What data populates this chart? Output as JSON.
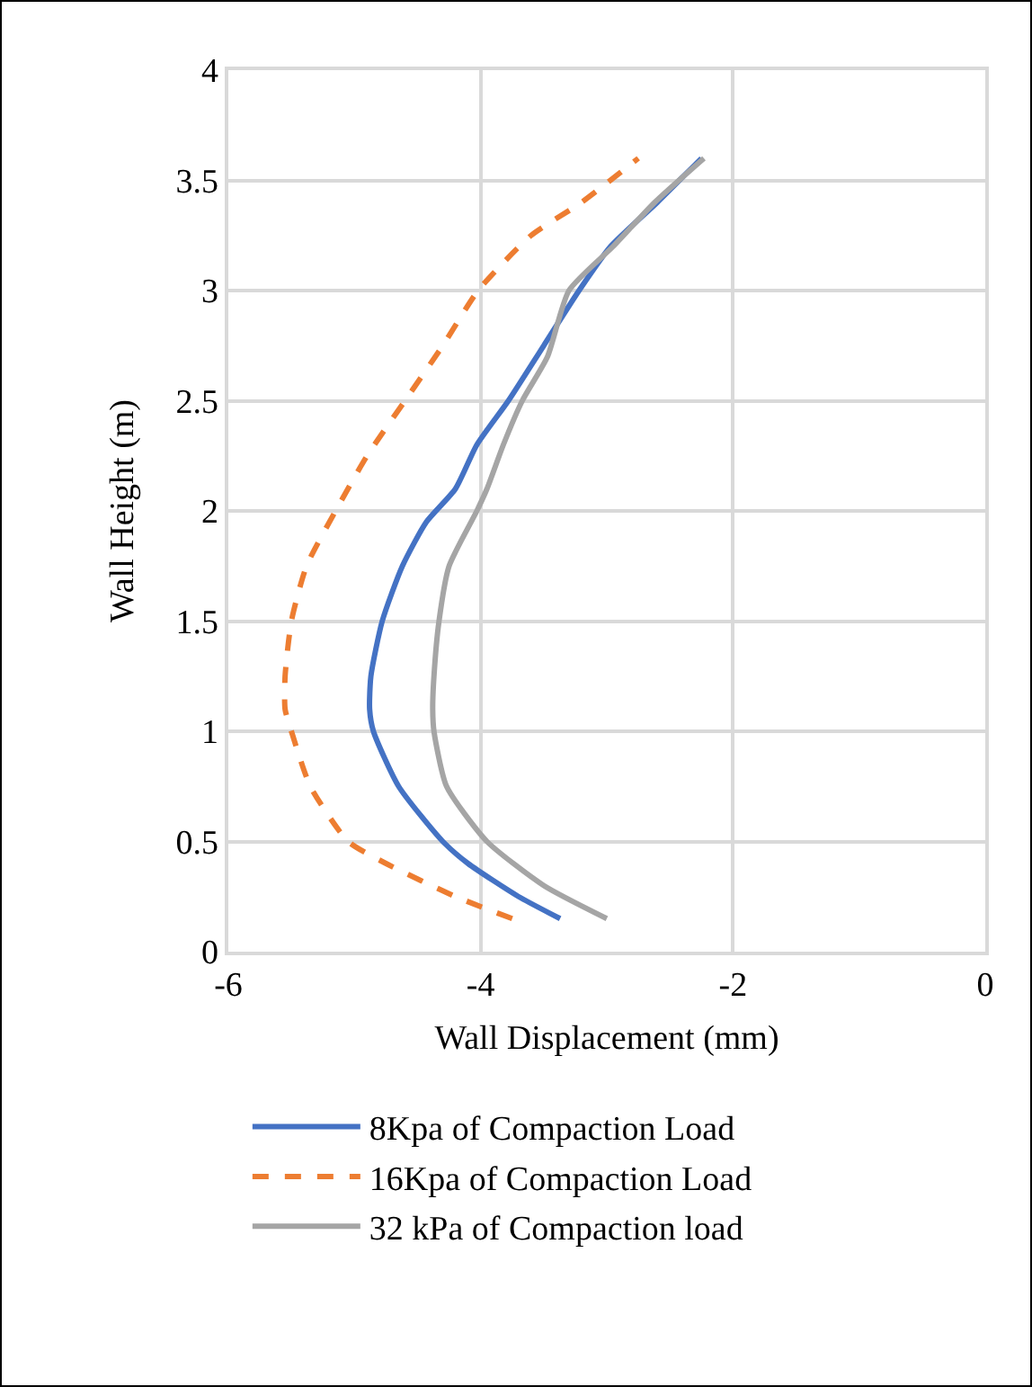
{
  "chart_data": {
    "type": "line",
    "xlabel": "Wall Displacement (mm)",
    "ylabel": "Wall Height (m)",
    "xlim": [
      -6,
      0
    ],
    "xticks": [
      -6,
      -4,
      -2,
      0
    ],
    "ylim": [
      0,
      4
    ],
    "yticks": [
      0,
      0.5,
      1,
      1.5,
      2,
      2.5,
      3,
      3.5,
      4
    ],
    "grid": true,
    "legend": "bottom",
    "marker": "none",
    "series": [
      {
        "name": "8Kpa of Compaction Load",
        "color": "#4472c4",
        "line_style": "solid",
        "x": [
          -3.37,
          -3.7,
          -4.1,
          -4.3,
          -4.65,
          -4.85,
          -4.88,
          -4.87,
          -4.78,
          -4.62,
          -4.43,
          -4.2,
          -4.03,
          -3.78,
          -3.5,
          -3.22,
          -2.97,
          -2.6,
          -2.25
        ],
        "values": [
          0.15,
          0.25,
          0.4,
          0.5,
          0.75,
          1,
          1.1,
          1.25,
          1.5,
          1.75,
          1.95,
          2.1,
          2.3,
          2.5,
          2.75,
          3,
          3.2,
          3.4,
          3.6
        ]
      },
      {
        "name": "16Kpa of Compaction Load",
        "color": "#ed7d31",
        "line_style": "dashed",
        "x": [
          -3.75,
          -4.2,
          -4.75,
          -5.05,
          -5.35,
          -5.5,
          -5.55,
          -5.55,
          -5.5,
          -5.38,
          -5.15,
          -4.9,
          -4.6,
          -4.3,
          -4.02,
          -3.6,
          -3.2,
          -2.75
        ],
        "values": [
          0.15,
          0.25,
          0.4,
          0.5,
          0.75,
          1,
          1.1,
          1.25,
          1.5,
          1.75,
          2,
          2.25,
          2.5,
          2.75,
          3,
          3.25,
          3.4,
          3.6
        ]
      },
      {
        "name": "32 kPa of Compaction load",
        "color": "#a5a5a5",
        "line_style": "solid",
        "x": [
          -3,
          -3.5,
          -3.95,
          -4.27,
          -4.37,
          -4.38,
          -4.37,
          -4.33,
          -4.25,
          -4.03,
          -3.95,
          -3.82,
          -3.67,
          -3.47,
          -3.3,
          -2.95,
          -2.62,
          -2.23
        ],
        "values": [
          0.15,
          0.3,
          0.5,
          0.75,
          1,
          1.1,
          1.25,
          1.5,
          1.75,
          2,
          2.1,
          2.3,
          2.5,
          2.7,
          3,
          3.2,
          3.4,
          3.6
        ]
      }
    ]
  }
}
